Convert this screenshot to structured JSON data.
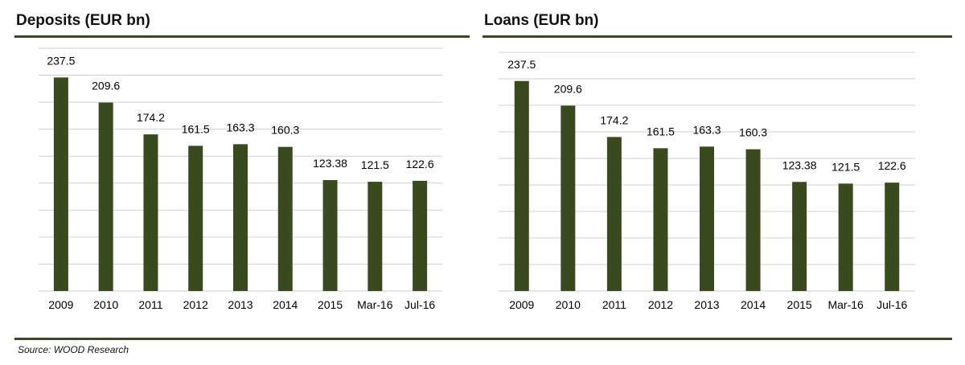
{
  "source": "Source: WOOD Research",
  "colors": {
    "bar": "#3a4a1f",
    "grid": "#d0d0d0",
    "rule": "#3a4a1f"
  },
  "chart_data": [
    {
      "type": "bar",
      "title": "Deposits (EUR bn)",
      "categories": [
        "2009",
        "2010",
        "2011",
        "2012",
        "2013",
        "2014",
        "2015",
        "Mar-16",
        "Jul-16"
      ],
      "values": [
        237.5,
        209.6,
        174.2,
        161.5,
        163.3,
        160.3,
        123.38,
        121.5,
        122.6
      ],
      "data_labels": [
        "237.5",
        "209.6",
        "174.2",
        "161.5",
        "163.3",
        "160.3",
        "123.38",
        "121.5",
        "122.6"
      ],
      "ylim": [
        0,
        270
      ],
      "grid": true,
      "legend": "none"
    },
    {
      "type": "bar",
      "title": "Loans (EUR bn)",
      "categories": [
        "2009",
        "2010",
        "2011",
        "2012",
        "2013",
        "2014",
        "2015",
        "Mar-16",
        "Jul-16"
      ],
      "values": [
        237.5,
        209.6,
        174.2,
        161.5,
        163.3,
        160.3,
        123.38,
        121.5,
        122.6
      ],
      "data_labels": [
        "237.5",
        "209.6",
        "174.2",
        "161.5",
        "163.3",
        "160.3",
        "123.38",
        "121.5",
        "122.6"
      ],
      "ylim": [
        0,
        270
      ],
      "grid": true,
      "legend": "none"
    }
  ]
}
